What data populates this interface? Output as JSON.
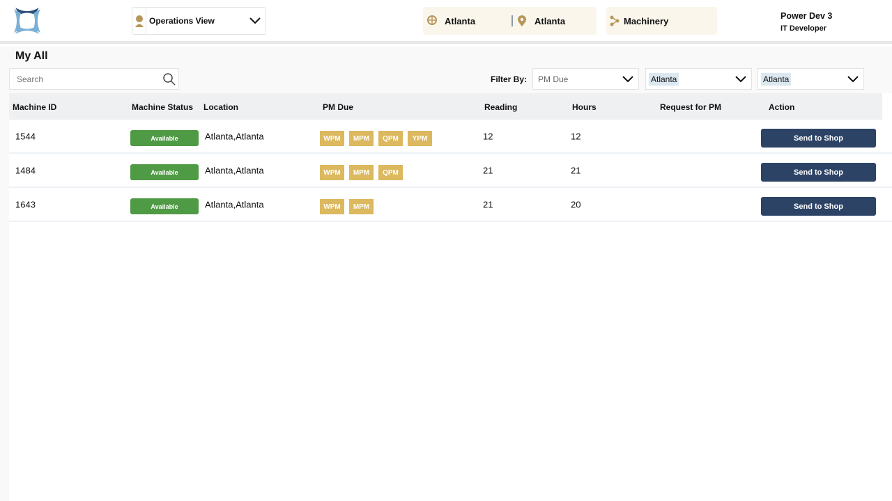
{
  "header": {
    "view_selector": "Operations View",
    "location1": "Atlanta",
    "location2": "Atlanta",
    "category": "Machinery",
    "user_name": "Power Dev 3",
    "user_role": "IT Developer"
  },
  "page": {
    "title": "My All",
    "search_placeholder": "Search",
    "filter_label": "Filter By:",
    "filters": [
      {
        "value": "PM Due"
      },
      {
        "value": "Atlanta"
      },
      {
        "value": "Atlanta"
      }
    ]
  },
  "table": {
    "columns": [
      "Machine ID",
      "Machine Status",
      "Location",
      "PM Due",
      "Reading",
      "Hours",
      "Request for PM",
      "Action"
    ],
    "rows": [
      {
        "id": "1544",
        "status": "Available",
        "location": "Atlanta,Atlanta",
        "pm": [
          "WPM",
          "MPM",
          "QPM",
          "YPM"
        ],
        "reading": "12",
        "hours": "12",
        "request": "",
        "action": "Send to Shop"
      },
      {
        "id": "1484",
        "status": "Available",
        "location": "Atlanta,Atlanta",
        "pm": [
          "WPM",
          "MPM",
          "QPM"
        ],
        "reading": "21",
        "hours": "21",
        "request": "",
        "action": "Send to Shop"
      },
      {
        "id": "1643",
        "status": "Available",
        "location": "Atlanta,Atlanta",
        "pm": [
          "WPM",
          "MPM"
        ],
        "reading": "21",
        "hours": "20",
        "request": "",
        "action": "Send to Shop"
      }
    ]
  },
  "colors": {
    "available": "#4f9a45",
    "pm_tag": "#dcb85e",
    "action": "#2c4366",
    "accent_gold": "#b8955a"
  }
}
